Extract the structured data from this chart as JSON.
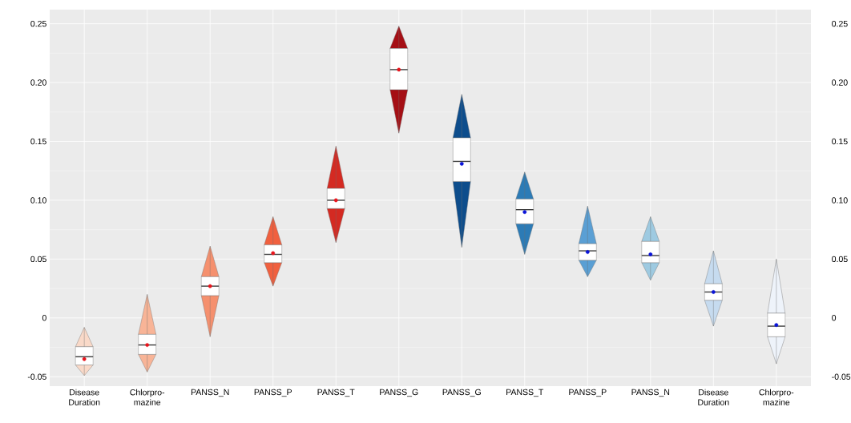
{
  "chart_data": {
    "type": "box",
    "categories": [
      "Disease Duration",
      "Chlorpro-mazine",
      "PANSS_N",
      "PANSS_P",
      "PANSS_T",
      "PANSS_G",
      "PANSS_G",
      "PANSS_T",
      "PANSS_P",
      "PANSS_N",
      "Disease Duration",
      "Chlorpro-mazine"
    ],
    "series": [
      {
        "color": "#e8141c",
        "colors": [
          "#f9d9c8",
          "#f8b497",
          "#f5906e",
          "#f0603f",
          "#d42a22",
          "#a50f15",
          null,
          null,
          null,
          null,
          null,
          null
        ],
        "boxes": [
          {
            "low": -0.049,
            "q1": -0.04,
            "median": -0.033,
            "q3": -0.0245,
            "high": -0.008,
            "mean": -0.035
          },
          {
            "low": -0.046,
            "q1": -0.031,
            "median": -0.023,
            "q3": -0.014,
            "high": 0.02,
            "mean": -0.023
          },
          {
            "low": -0.016,
            "q1": 0.019,
            "median": 0.027,
            "q3": 0.035,
            "high": 0.061,
            "mean": 0.027
          },
          {
            "low": 0.027,
            "q1": 0.047,
            "median": 0.054,
            "q3": 0.062,
            "high": 0.086,
            "mean": 0.055
          },
          {
            "low": 0.064,
            "q1": 0.093,
            "median": 0.1,
            "q3": 0.11,
            "high": 0.146,
            "mean": 0.1
          },
          {
            "low": 0.157,
            "q1": 0.194,
            "median": 0.211,
            "q3": 0.229,
            "high": 0.248,
            "mean": 0.211
          },
          null,
          null,
          null,
          null,
          null,
          null
        ]
      },
      {
        "color": "#0a14d8",
        "colors": [
          null,
          null,
          null,
          null,
          null,
          null,
          "#0d4d8c",
          "#2c7bb6",
          "#5a9fd4",
          "#9ecae1",
          "#c6dbef",
          "#eef3fa"
        ],
        "boxes": [
          null,
          null,
          null,
          null,
          null,
          null,
          {
            "low": 0.06,
            "q1": 0.116,
            "median": 0.133,
            "q3": 0.153,
            "high": 0.19,
            "mean": 0.131
          },
          {
            "low": 0.054,
            "q1": 0.08,
            "median": 0.092,
            "q3": 0.101,
            "high": 0.124,
            "mean": 0.09
          },
          {
            "low": 0.035,
            "q1": 0.049,
            "median": 0.057,
            "q3": 0.063,
            "high": 0.095,
            "mean": 0.056
          },
          {
            "low": 0.032,
            "q1": 0.047,
            "median": 0.053,
            "q3": 0.065,
            "high": 0.086,
            "mean": 0.054
          },
          {
            "low": -0.007,
            "q1": 0.015,
            "median": 0.022,
            "q3": 0.029,
            "high": 0.057,
            "mean": 0.022
          },
          {
            "low": -0.039,
            "q1": -0.016,
            "median": -0.007,
            "q3": 0.004,
            "high": 0.05,
            "mean": -0.006
          }
        ]
      }
    ],
    "ylim": [
      -0.058,
      0.262
    ],
    "yticks": [
      {
        "value": -0.05,
        "label": "-0.05"
      },
      {
        "value": 0,
        "label": "0"
      },
      {
        "value": 0.05,
        "label": "0.05"
      },
      {
        "value": 0.1,
        "label": "0.10"
      },
      {
        "value": 0.15,
        "label": "0.15"
      },
      {
        "value": 0.2,
        "label": "0.20"
      },
      {
        "value": 0.25,
        "label": "0.25"
      }
    ],
    "y2lim": [
      -0.058,
      0.262
    ],
    "y2ticks": [
      {
        "value": -0.05,
        "label": "-0.05"
      },
      {
        "value": 0,
        "label": "0"
      },
      {
        "value": 0.05,
        "label": "0.05"
      },
      {
        "value": 0.1,
        "label": "0.10"
      },
      {
        "value": 0.15,
        "label": "0.15"
      },
      {
        "value": 0.2,
        "label": "0.20"
      },
      {
        "value": 0.25,
        "label": "0.25"
      }
    ],
    "grid": true,
    "legend": false
  }
}
